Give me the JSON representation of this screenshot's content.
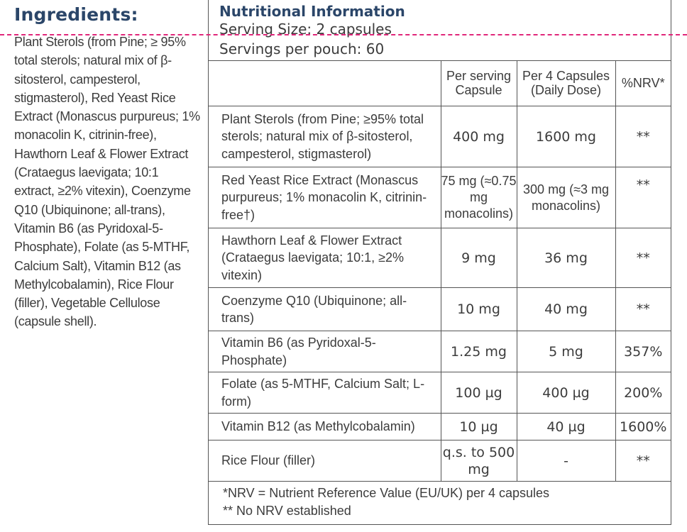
{
  "ingredients": {
    "title": "Ingredients:",
    "text": "Plant Sterols (from Pine; ≥ 95% total sterols; natural mix of β-sitosterol, campesterol, stigmasterol), Red Yeast Rice Extract (Monascus purpureus; 1% monacolin K, citrinin-free), Hawthorn Leaf & Flower Extract (Crataegus laevigata; 10:1 extract, ≥2% vitexin), Coenzyme Q10 (Ubiquinone; all-trans), Vitamin B6 (as Pyridoxal-5-Phosphate), Folate (as 5-MTHF, Calcium Salt), Vitamin B12 (as Methylcobalamin), Rice Flour (filler), Vegetable Cellulose (capsule shell)."
  },
  "nutrition": {
    "title": "Nutritional Information",
    "serving_size": "Serving Size: 2 capsules",
    "servings_per_pouch": "Servings per pouch: 60",
    "headers": {
      "per_serving": "Per serving Capsule",
      "per_4": "Per 4 Capsules (Daily Dose)",
      "nrv": "%NRV*"
    },
    "rows": [
      {
        "name": "Plant Sterols (from Pine; ≥95% total sterols; natural mix of β-sitosterol, campesterol, stigmasterol)",
        "per_serving": "400 mg",
        "per_4": "1600 mg",
        "nrv": "**"
      },
      {
        "name": "Red Yeast Rice Extract (Monascus purpureus; 1% monacolin K, citrinin-free†)",
        "per_serving": "75 mg (≈0.75 mg monacolins)",
        "per_4": "300 mg (≈3 mg monacolins)",
        "nrv": "**"
      },
      {
        "name": "Hawthorn Leaf & Flower Extract (Crataegus laevigata; 10:1, ≥2% vitexin)",
        "per_serving": "9 mg",
        "per_4": "36 mg",
        "nrv": "**"
      },
      {
        "name": "Coenzyme Q10 (Ubiquinone; all-trans)",
        "per_serving": "10 mg",
        "per_4": "40 mg",
        "nrv": "**"
      },
      {
        "name": "Vitamin B6 (as Pyridoxal-5-Phosphate)",
        "per_serving": "1.25 mg",
        "per_4": "5 mg",
        "nrv": "357%"
      },
      {
        "name": "Folate (as 5-MTHF, Calcium Salt; L-form)",
        "per_serving": "100 µg",
        "per_4": "400 µg",
        "nrv": "200%"
      },
      {
        "name": "Vitamin B12 (as Methylcobalamin)",
        "per_serving": "10 µg",
        "per_4": "40 µg",
        "nrv": "1600%"
      },
      {
        "name": "Rice Flour (filler)",
        "per_serving": "q.s. to 500 mg",
        "per_4": "-",
        "nrv": "**"
      }
    ],
    "footnote_1": "*NRV = Nutrient Reference Value (EU/UK) per 4 capsules",
    "footnote_2": "** No NRV established"
  },
  "colors": {
    "heading": "#2b4669",
    "text": "#3c3c3c",
    "border": "#555555",
    "dashed_guide": "#e0267a"
  }
}
